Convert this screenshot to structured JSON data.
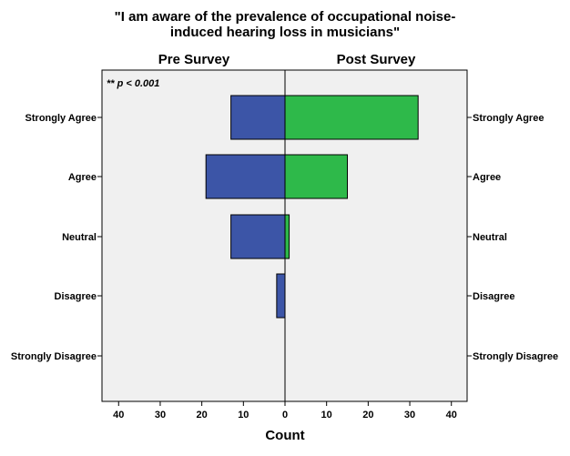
{
  "chart_data": {
    "type": "bar",
    "orientation": "horizontal",
    "layout": "back-to-back",
    "title_lines": [
      "\"I am aware of the prevalence of occupational noise-",
      "induced hearing loss in musicians\""
    ],
    "panels": [
      "Pre Survey",
      "Post Survey"
    ],
    "categories": [
      "Strongly Agree",
      "Agree",
      "Neutral",
      "Disagree",
      "Strongly Disagree"
    ],
    "series": [
      {
        "name": "Pre Survey",
        "values": [
          13,
          19,
          13,
          2,
          0
        ],
        "color": "#3c55a7"
      },
      {
        "name": "Post Survey",
        "values": [
          32,
          15,
          1,
          0,
          0
        ],
        "color": "#2eb94a"
      }
    ],
    "xlabel": "Count",
    "xlim": [
      0,
      44
    ],
    "xticks": [
      40,
      30,
      20,
      10,
      0,
      10,
      20,
      30,
      40
    ],
    "annotation": "** p < 0.001",
    "plot_background": "#f0f0f0",
    "grid": false
  }
}
